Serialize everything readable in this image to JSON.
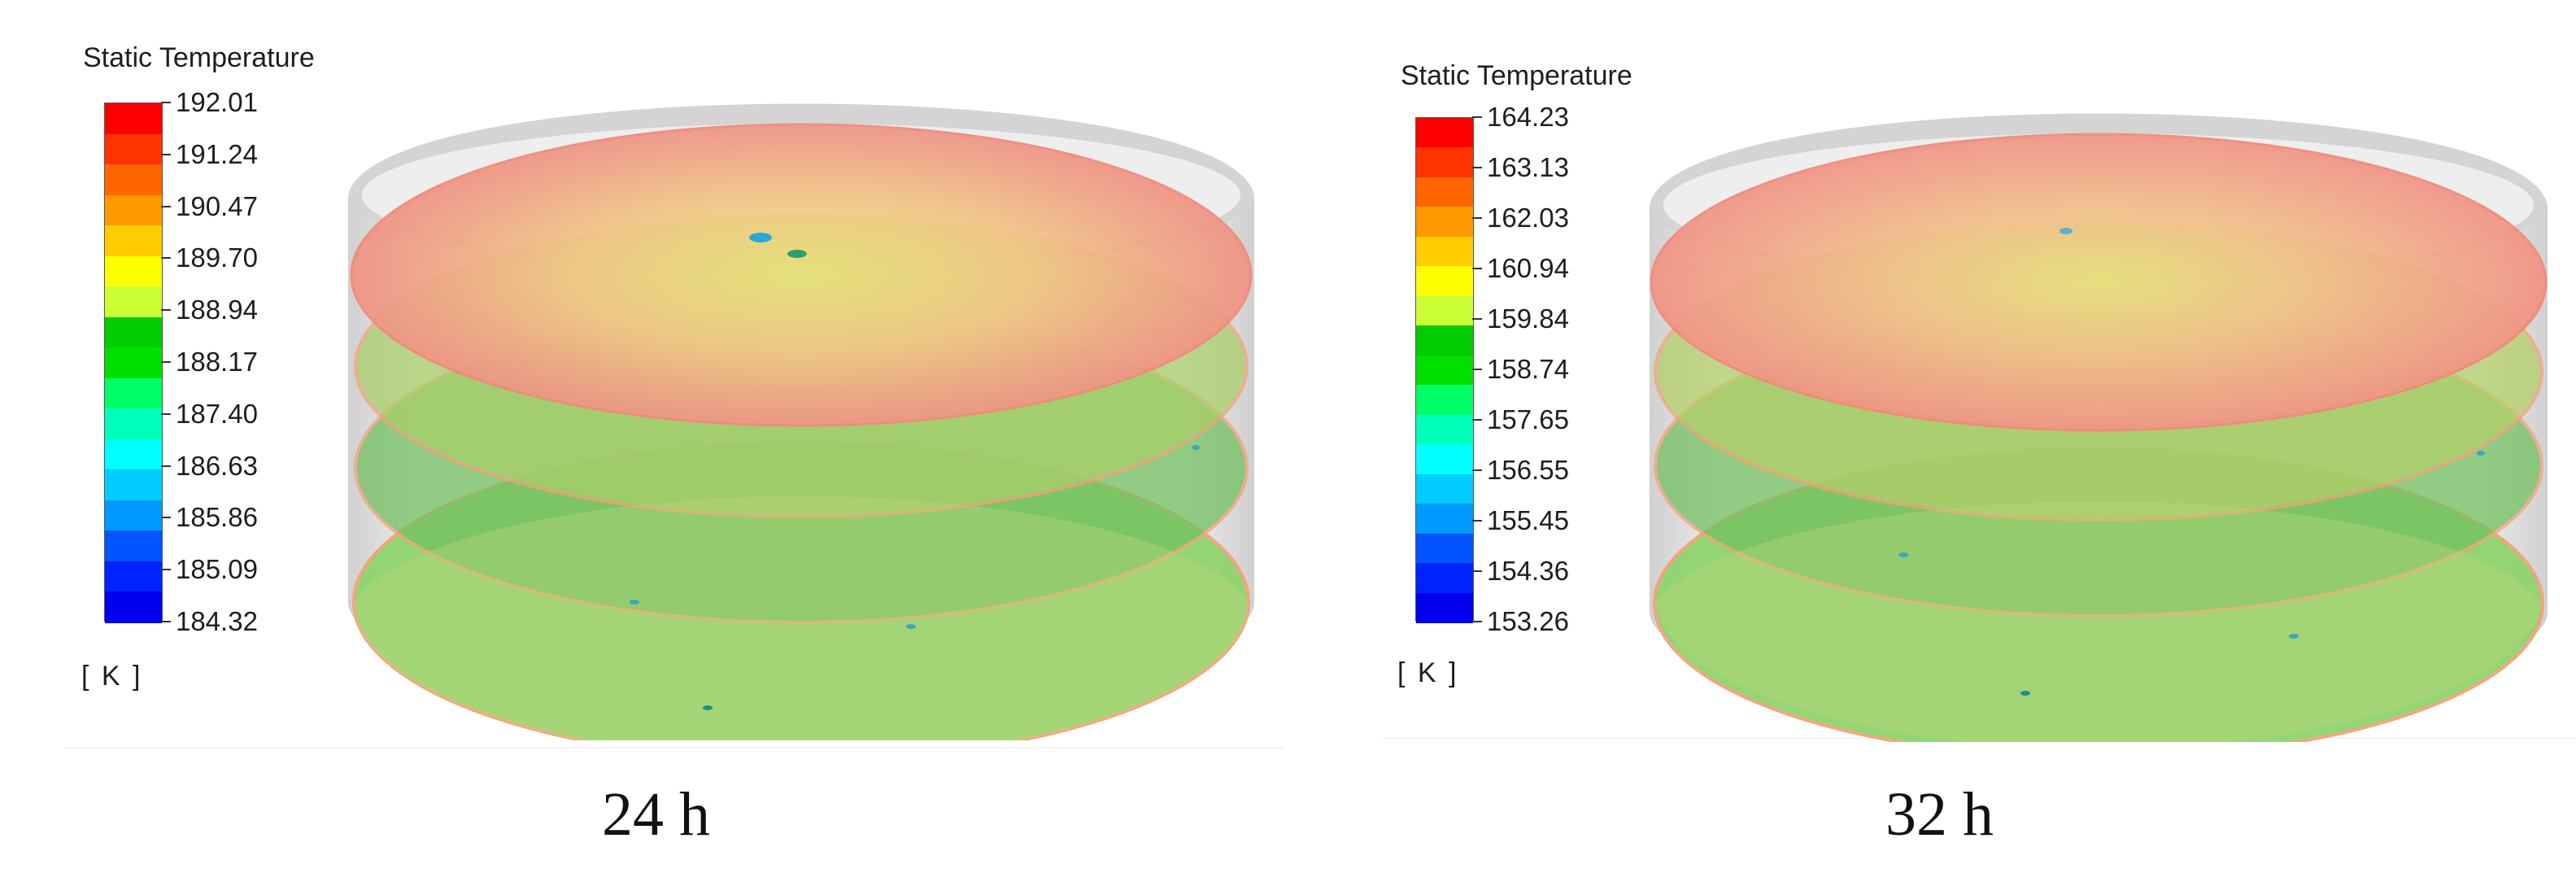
{
  "panels": [
    {
      "caption": "24 h",
      "legend": {
        "title": "Static Temperature",
        "unit": "[ K ]",
        "labels": [
          "192.01",
          "191.24",
          "190.47",
          "189.70",
          "188.94",
          "188.17",
          "187.40",
          "186.63",
          "185.86",
          "185.09",
          "184.32"
        ]
      }
    },
    {
      "caption": "32 h",
      "legend": {
        "title": "Static Temperature",
        "unit": "[ K ]",
        "labels": [
          "164.23",
          "163.13",
          "162.03",
          "160.94",
          "159.84",
          "158.74",
          "157.65",
          "156.55",
          "155.45",
          "154.36",
          "153.26"
        ]
      }
    }
  ],
  "colormap": [
    "#ff0000",
    "#ff3300",
    "#ff6600",
    "#ff9900",
    "#ffcc00",
    "#ffff00",
    "#ccff33",
    "#00cc00",
    "#00e000",
    "#00ff66",
    "#00ffbb",
    "#00ffff",
    "#00ccff",
    "#0099ff",
    "#0055ff",
    "#0022ff",
    "#0000ee"
  ],
  "colors": {
    "tank_outer": "#d2d2d2",
    "tank_inner": "#ececec",
    "top_plane": "#f2b07c",
    "mid_plane": "#a9cf6a",
    "bottom_plane": "#8fd46e",
    "rim": "#f4a27a"
  }
}
